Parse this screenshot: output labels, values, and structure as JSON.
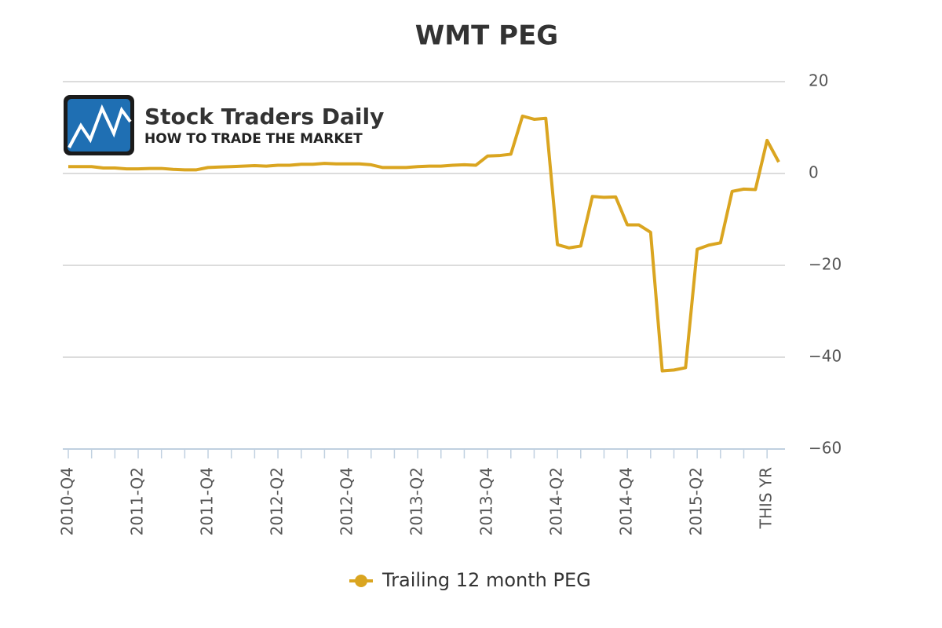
{
  "chart_data": {
    "type": "line",
    "title": "WMT PEG",
    "annotations": [
      "Stock Traders Daily",
      "HOW TO TRADE THE MARKET"
    ],
    "categories": [
      "2010-Q4",
      null,
      null,
      null,
      null,
      null,
      "2011-Q2",
      null,
      null,
      null,
      null,
      null,
      "2011-Q4",
      null,
      null,
      null,
      null,
      null,
      "2012-Q2",
      null,
      null,
      null,
      null,
      null,
      "2012-Q4",
      null,
      null,
      null,
      null,
      null,
      "2013-Q2",
      null,
      null,
      null,
      null,
      null,
      "2013-Q4",
      null,
      null,
      null,
      null,
      null,
      "2014-Q2",
      null,
      null,
      null,
      null,
      null,
      "2014-Q4",
      null,
      null,
      null,
      null,
      null,
      "2015-Q2",
      null,
      null,
      null,
      null,
      null,
      "THIS YR",
      null
    ],
    "series": [
      {
        "name": "Trailing 12 month PEG",
        "color": "#daa520",
        "values": [
          1.5,
          1.5,
          1.5,
          1.2,
          1.2,
          1.0,
          1.0,
          1.1,
          1.1,
          0.9,
          0.8,
          0.8,
          1.3,
          1.4,
          1.5,
          1.6,
          1.7,
          1.6,
          1.8,
          1.8,
          2.0,
          2.0,
          2.2,
          2.1,
          2.1,
          2.1,
          1.9,
          1.3,
          1.3,
          1.3,
          1.5,
          1.6,
          1.6,
          1.8,
          1.9,
          1.8,
          3.8,
          3.9,
          4.2,
          12.5,
          11.8,
          12.0,
          -15.5,
          -16.2,
          -15.8,
          -5.0,
          -5.2,
          -5.1,
          -11.2,
          -11.2,
          -12.8,
          -43.0,
          -42.8,
          -42.3,
          -16.5,
          -15.6,
          -15.1,
          -3.9,
          -3.4,
          -3.5,
          7.2,
          2.5
        ]
      }
    ],
    "ylim": [
      -60,
      20
    ],
    "yticks": [
      {
        "value": -60,
        "label": "−60"
      },
      {
        "value": -40,
        "label": "−40"
      },
      {
        "value": -20,
        "label": "−20"
      },
      0,
      20
    ],
    "grid": true,
    "legend": "bottom"
  }
}
